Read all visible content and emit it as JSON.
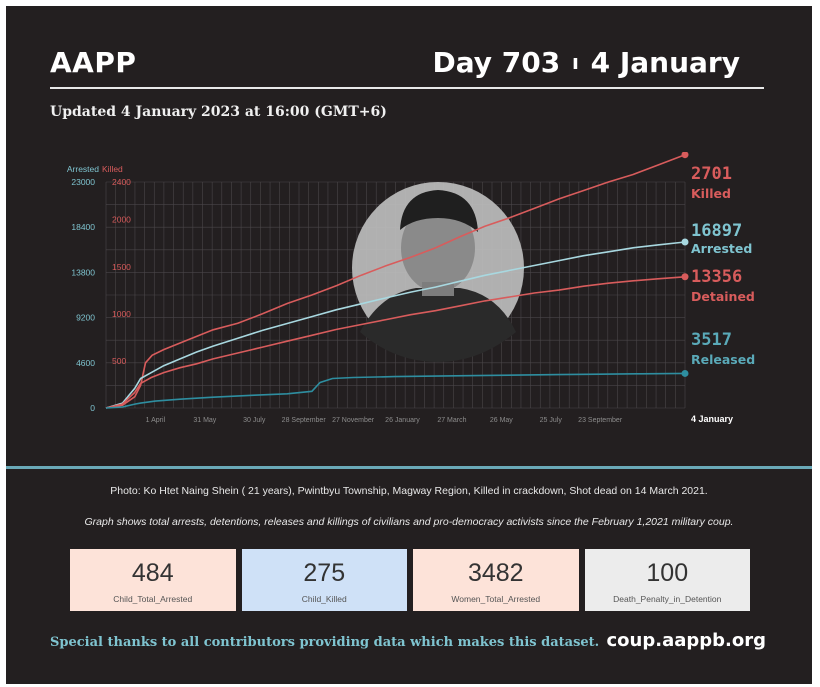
{
  "header": {
    "brand": "AAPP",
    "day": "Day 703",
    "separator": "ı",
    "date": "4 January"
  },
  "updated": "Updated 4 January 2023 at 16:00 (GMT+6)",
  "colors": {
    "killed": "#d85c5c",
    "arrested": "#a8d8e0",
    "detained": "#d85c5c",
    "released": "#2e8ea0",
    "arrested_label": "#7fc4d0",
    "released_label": "#5aa9b8",
    "grid": "#4a4648",
    "background": "#231f20"
  },
  "chart_data": {
    "type": "line",
    "title": "",
    "left_axis_label": "Arrested",
    "right_axis_label": "Killed",
    "left_ticks": [
      "0",
      "4600",
      "9200",
      "13800",
      "18400",
      "23000"
    ],
    "right_ticks": [
      "500",
      "1000",
      "1500",
      "2000",
      "2400"
    ],
    "ylim_left": [
      0,
      23000
    ],
    "ylim_right": [
      0,
      2400
    ],
    "x_ticks": [
      "1 April",
      "31 May",
      "30 July",
      "28 September",
      "27 November",
      "26 January",
      "27 March",
      "26 May",
      "25 July",
      "23 September",
      "4 January"
    ],
    "x_range_days": [
      0,
      703
    ],
    "series": [
      {
        "name": "Killed",
        "axis": "right",
        "final_value": "2701",
        "final_label": "Killed",
        "points": [
          [
            0,
            0
          ],
          [
            20,
            30
          ],
          [
            35,
            120
          ],
          [
            42,
            240
          ],
          [
            48,
            480
          ],
          [
            56,
            560
          ],
          [
            70,
            620
          ],
          [
            90,
            690
          ],
          [
            110,
            760
          ],
          [
            130,
            830
          ],
          [
            160,
            900
          ],
          [
            190,
            1000
          ],
          [
            220,
            1110
          ],
          [
            250,
            1200
          ],
          [
            280,
            1300
          ],
          [
            310,
            1410
          ],
          [
            340,
            1510
          ],
          [
            370,
            1600
          ],
          [
            400,
            1700
          ],
          [
            430,
            1820
          ],
          [
            460,
            1930
          ],
          [
            490,
            2020
          ],
          [
            520,
            2120
          ],
          [
            550,
            2220
          ],
          [
            580,
            2310
          ],
          [
            610,
            2400
          ],
          [
            640,
            2480
          ],
          [
            670,
            2580
          ],
          [
            703,
            2690
          ]
        ]
      },
      {
        "name": "Arrested",
        "axis": "left",
        "final_value": "16897",
        "final_label": "Arrested",
        "points": [
          [
            0,
            0
          ],
          [
            20,
            500
          ],
          [
            35,
            2000
          ],
          [
            42,
            3000
          ],
          [
            55,
            3600
          ],
          [
            70,
            4300
          ],
          [
            90,
            5000
          ],
          [
            110,
            5700
          ],
          [
            130,
            6300
          ],
          [
            160,
            7100
          ],
          [
            190,
            7900
          ],
          [
            220,
            8600
          ],
          [
            250,
            9300
          ],
          [
            280,
            10000
          ],
          [
            310,
            10600
          ],
          [
            340,
            11200
          ],
          [
            370,
            11800
          ],
          [
            400,
            12300
          ],
          [
            430,
            12900
          ],
          [
            460,
            13500
          ],
          [
            490,
            14000
          ],
          [
            520,
            14500
          ],
          [
            550,
            15000
          ],
          [
            580,
            15500
          ],
          [
            610,
            15900
          ],
          [
            640,
            16300
          ],
          [
            670,
            16600
          ],
          [
            703,
            16897
          ]
        ]
      },
      {
        "name": "Detained",
        "axis": "left",
        "final_value": "13356",
        "final_label": "Detained",
        "points": [
          [
            0,
            0
          ],
          [
            20,
            400
          ],
          [
            35,
            1600
          ],
          [
            42,
            2500
          ],
          [
            55,
            3100
          ],
          [
            70,
            3600
          ],
          [
            90,
            4100
          ],
          [
            110,
            4500
          ],
          [
            130,
            5000
          ],
          [
            160,
            5600
          ],
          [
            190,
            6200
          ],
          [
            220,
            6800
          ],
          [
            250,
            7400
          ],
          [
            280,
            8000
          ],
          [
            310,
            8500
          ],
          [
            340,
            9000
          ],
          [
            370,
            9500
          ],
          [
            400,
            9900
          ],
          [
            430,
            10400
          ],
          [
            460,
            10900
          ],
          [
            490,
            11300
          ],
          [
            520,
            11700
          ],
          [
            550,
            12000
          ],
          [
            580,
            12400
          ],
          [
            610,
            12700
          ],
          [
            640,
            12950
          ],
          [
            670,
            13150
          ],
          [
            703,
            13356
          ]
        ]
      },
      {
        "name": "Released",
        "axis": "left",
        "final_value": "3517",
        "final_label": "Released",
        "points": [
          [
            0,
            0
          ],
          [
            20,
            100
          ],
          [
            35,
            400
          ],
          [
            42,
            500
          ],
          [
            60,
            700
          ],
          [
            90,
            900
          ],
          [
            130,
            1100
          ],
          [
            180,
            1300
          ],
          [
            220,
            1450
          ],
          [
            250,
            1700
          ],
          [
            260,
            2600
          ],
          [
            275,
            3000
          ],
          [
            300,
            3100
          ],
          [
            350,
            3200
          ],
          [
            400,
            3250
          ],
          [
            450,
            3300
          ],
          [
            500,
            3350
          ],
          [
            550,
            3400
          ],
          [
            600,
            3440
          ],
          [
            650,
            3480
          ],
          [
            703,
            3517
          ]
        ]
      }
    ]
  },
  "photo_note": "Photo: Ko Htet Naing Shein ( 21 years), Pwintbyu Township, Magway Region, Killed in crackdown, Shot dead on 14 March 2021.",
  "graph_note": "Graph shows total arrests, detentions, releases and killings of civilians and pro-democracy activists since the February 1,2021 military coup.",
  "stats": [
    {
      "value": "484",
      "label": "Child_Total_Arrested",
      "color": "#fde3d9"
    },
    {
      "value": "275",
      "label": "Child_Killed",
      "color": "#cfe1f7"
    },
    {
      "value": "3482",
      "label": "Women_Total_Arrested",
      "color": "#fde3d9"
    },
    {
      "value": "100",
      "label": "Death_Penalty_in_Detention",
      "color": "#ececec"
    }
  ],
  "footer": {
    "thanks": "Special thanks to all contributors providing data which makes this dataset.",
    "site": "coup.aappb.org"
  }
}
